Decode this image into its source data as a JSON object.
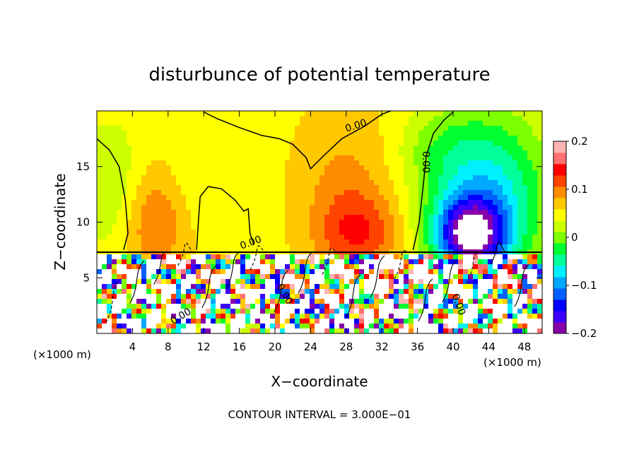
{
  "chart_data": {
    "type": "heatmap",
    "title": "disturbunce of potential temperature",
    "xlabel": "X−coordinate",
    "ylabel": "Z−coordinate",
    "x_unit_left": "(×1000 m)",
    "x_unit_right": "(×1000 m)",
    "footer": "CONTOUR INTERVAL = 3.000E−01",
    "xlim": [
      0,
      50
    ],
    "ylim": [
      0,
      20
    ],
    "x_ticks": [
      4,
      8,
      12,
      16,
      20,
      24,
      28,
      32,
      36,
      40,
      44,
      48
    ],
    "y_ticks": [
      5,
      10,
      15
    ],
    "colorbar": {
      "min": -0.2,
      "max": 0.2,
      "ticks": [
        {
          "v": 0.2,
          "label": "0.2"
        },
        {
          "v": 0.1,
          "label": "0.1"
        },
        {
          "v": 0,
          "label": "0"
        },
        {
          "v": -0.1,
          "label": "−0.1"
        },
        {
          "v": -0.2,
          "label": "−0.2"
        }
      ],
      "colors": [
        "#8800aa",
        "#3c00ff",
        "#0000ff",
        "#0060ff",
        "#00a8ff",
        "#00f0ff",
        "#00ff9a",
        "#00ff30",
        "#7cff00",
        "#ccff00",
        "#ffff00",
        "#ffc800",
        "#ff8c00",
        "#ff4400",
        "#ff0000",
        "#ff7070",
        "#ffb4b4"
      ]
    },
    "contour_labels": [
      {
        "x": 29.2,
        "y": 18.4,
        "text": "0.00",
        "rot": -18
      },
      {
        "x": 36.6,
        "y": 15.4,
        "text": "0.00",
        "rot": 90
      },
      {
        "x": 17.4,
        "y": 7.9,
        "text": "0.00",
        "rot": -20
      },
      {
        "x": 20.8,
        "y": 3.4,
        "text": "0.00",
        "rot": 60
      },
      {
        "x": 9.6,
        "y": 1.3,
        "text": "0.00",
        "rot": -30
      },
      {
        "x": 40.3,
        "y": 2.5,
        "text": "0.00",
        "rot": 70
      }
    ]
  }
}
